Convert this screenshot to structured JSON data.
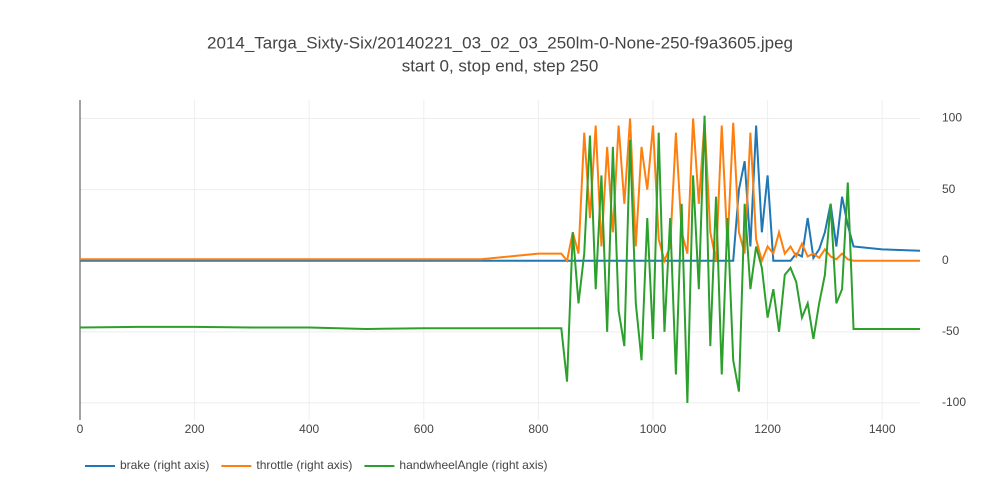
{
  "chart_data": {
    "type": "line",
    "title": "2014_Targa_Sixty-Six/20140221_03_02_03_250lm-0-None-250-f9a3605.jpeg",
    "subtitle": "start 0, stop end, step 250",
    "x": [
      0,
      100,
      200,
      300,
      400,
      500,
      600,
      700,
      800,
      840,
      850,
      860,
      870,
      880,
      890,
      900,
      910,
      920,
      930,
      940,
      950,
      960,
      970,
      980,
      990,
      1000,
      1010,
      1020,
      1030,
      1040,
      1050,
      1060,
      1070,
      1080,
      1090,
      1100,
      1110,
      1120,
      1130,
      1140,
      1150,
      1160,
      1170,
      1180,
      1190,
      1200,
      1210,
      1220,
      1230,
      1240,
      1250,
      1260,
      1270,
      1280,
      1290,
      1300,
      1310,
      1320,
      1330,
      1340,
      1350,
      1400,
      1466
    ],
    "series": [
      {
        "name": "brake (right axis)",
        "color": "#1f77b4",
        "values": [
          0,
          0,
          0,
          0,
          0,
          0,
          0,
          0,
          0,
          0,
          0,
          0,
          0,
          0,
          0,
          0,
          0,
          0,
          0,
          0,
          0,
          0,
          0,
          0,
          0,
          0,
          0,
          0,
          0,
          0,
          0,
          0,
          0,
          0,
          0,
          0,
          0,
          0,
          0,
          0,
          50,
          70,
          10,
          95,
          20,
          60,
          0,
          0,
          0,
          0,
          5,
          3,
          30,
          2,
          8,
          20,
          40,
          10,
          45,
          25,
          10,
          8,
          7
        ]
      },
      {
        "name": "throttle (right axis)",
        "color": "#ff7f0e",
        "values": [
          1,
          1,
          1,
          1,
          1,
          1,
          1,
          1,
          5,
          5,
          0,
          20,
          5,
          90,
          30,
          95,
          10,
          80,
          20,
          95,
          40,
          100,
          10,
          80,
          50,
          95,
          15,
          0,
          10,
          90,
          20,
          5,
          100,
          40,
          98,
          20,
          0,
          95,
          10,
          97,
          20,
          5,
          90,
          15,
          0,
          10,
          5,
          20,
          5,
          10,
          3,
          12,
          3,
          5,
          2,
          8,
          3,
          1,
          5,
          1,
          0,
          0,
          0
        ]
      },
      {
        "name": "handwheelAngle (right axis)",
        "color": "#2ca02c",
        "values": [
          -47,
          -46.5,
          -46.5,
          -47,
          -47,
          -48,
          -47.5,
          -47.5,
          -47.5,
          -47.5,
          -85,
          20,
          -30,
          5,
          88,
          -20,
          60,
          -50,
          80,
          -35,
          -60,
          85,
          -30,
          -70,
          30,
          -55,
          90,
          -50,
          30,
          -80,
          40,
          -100,
          60,
          -20,
          102,
          -60,
          45,
          -80,
          30,
          -70,
          -92,
          40,
          -20,
          10,
          -5,
          -40,
          -20,
          -50,
          -10,
          -5,
          -15,
          -40,
          -30,
          -55,
          -30,
          -10,
          40,
          -30,
          -20,
          55,
          -48,
          -48,
          -48
        ]
      }
    ],
    "xlim": [
      0,
      1466
    ],
    "xticks": [
      0,
      200,
      400,
      600,
      800,
      1000,
      1200,
      1400
    ],
    "ylim": [
      -112,
      113
    ],
    "yticks": [
      -100,
      -50,
      0,
      50,
      100
    ],
    "yaxis_side": "right",
    "grid": true,
    "legend": "bottom"
  }
}
